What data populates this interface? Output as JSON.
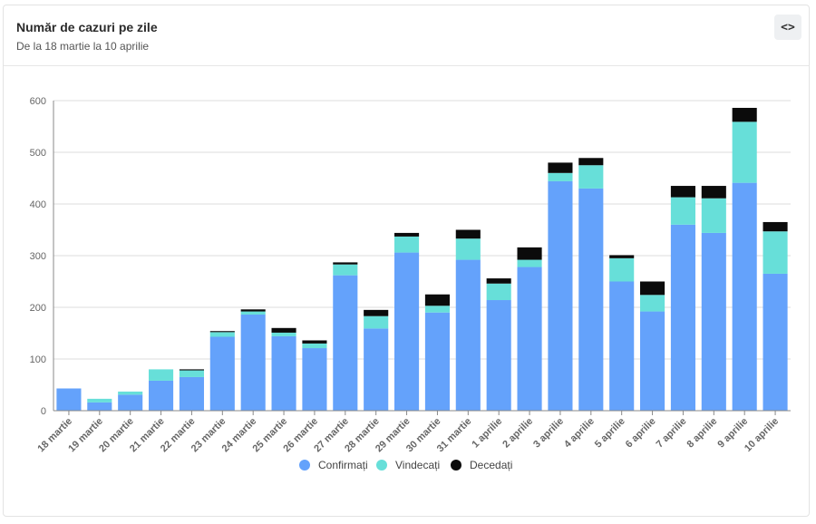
{
  "header": {
    "title": "Număr de cazuri pe zile",
    "subtitle": "De la 18 martie la 10 aprilie",
    "embed_icon": "code-icon",
    "embed_glyph": "<>"
  },
  "colors": {
    "confirmati": "#64a2fb",
    "vindecati": "#67dfd9",
    "decedati": "#0b0b0b",
    "grid": "#dddddd",
    "axis": "#888888"
  },
  "chart_data": {
    "type": "bar",
    "stacked": true,
    "categories": [
      "18 martie",
      "19 martie",
      "20 martie",
      "21 martie",
      "22 martie",
      "23 martie",
      "24 martie",
      "25 martie",
      "26 martie",
      "27 martie",
      "28 martie",
      "29 martie",
      "30 martie",
      "31 martie",
      "1 aprilie",
      "2 aprilie",
      "3 aprilie",
      "4 aprilie",
      "5 aprilie",
      "6 aprilie",
      "7 aprilie",
      "8 aprilie",
      "9 aprilie",
      "10 aprilie"
    ],
    "series": [
      {
        "name": "Confirmați",
        "values": [
          43,
          16,
          31,
          58,
          65,
          143,
          186,
          144,
          121,
          262,
          159,
          306,
          190,
          292,
          214,
          278,
          444,
          430,
          250,
          192,
          360,
          344,
          441,
          265
        ]
      },
      {
        "name": "Vindecați",
        "values": [
          0,
          7,
          6,
          22,
          13,
          9,
          6,
          7,
          9,
          21,
          24,
          31,
          13,
          41,
          32,
          14,
          16,
          45,
          45,
          32,
          53,
          67,
          118,
          82
        ]
      },
      {
        "name": "Decedați",
        "values": [
          0,
          0,
          0,
          0,
          2,
          2,
          4,
          9,
          6,
          4,
          12,
          7,
          22,
          17,
          10,
          24,
          20,
          14,
          6,
          26,
          22,
          24,
          27,
          18
        ]
      }
    ],
    "yticks": [
      0,
      100,
      200,
      300,
      400,
      500,
      600
    ],
    "ylim": [
      0,
      600
    ],
    "xlabel": "",
    "ylabel": "",
    "legend_position": "bottom-center"
  }
}
